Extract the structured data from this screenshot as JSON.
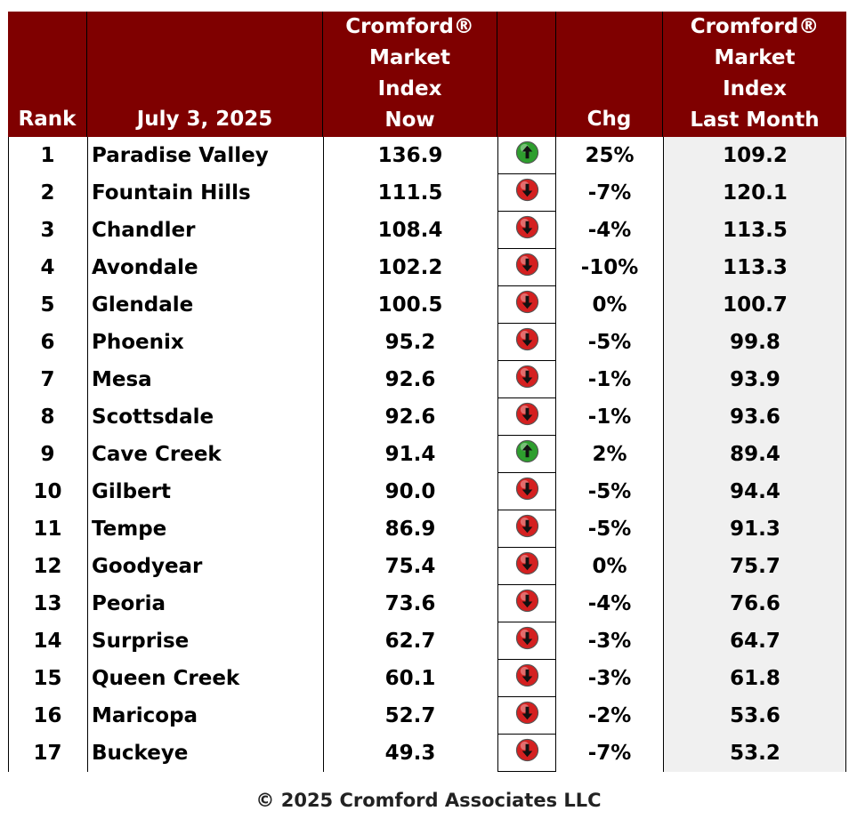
{
  "header": {
    "rank": "Rank",
    "date": "July 3, 2025",
    "now": [
      "Cromford®",
      "Market",
      "Index",
      "Now"
    ],
    "chg": "Chg",
    "last": [
      "Cromford®",
      "Market",
      "Index",
      "Last Month"
    ]
  },
  "colors": {
    "header_bg": "#7f0000",
    "up": "#2e9e2e",
    "down": "#d42020"
  },
  "chart_data": {
    "type": "table",
    "columns": [
      "Rank",
      "July 3, 2025",
      "Cromford® Market Index Now",
      "",
      "Chg",
      "Cromford® Market Index Last Month"
    ],
    "rows": [
      {
        "rank": "1",
        "city": "Paradise Valley",
        "now": "136.9",
        "dir": "up",
        "chg": "25%",
        "last": "109.2"
      },
      {
        "rank": "2",
        "city": "Fountain Hills",
        "now": "111.5",
        "dir": "down",
        "chg": "-7%",
        "last": "120.1"
      },
      {
        "rank": "3",
        "city": "Chandler",
        "now": "108.4",
        "dir": "down",
        "chg": "-4%",
        "last": "113.5"
      },
      {
        "rank": "4",
        "city": "Avondale",
        "now": "102.2",
        "dir": "down",
        "chg": "-10%",
        "last": "113.3"
      },
      {
        "rank": "5",
        "city": "Glendale",
        "now": "100.5",
        "dir": "down",
        "chg": "0%",
        "last": "100.7"
      },
      {
        "rank": "6",
        "city": "Phoenix",
        "now": "95.2",
        "dir": "down",
        "chg": "-5%",
        "last": "99.8"
      },
      {
        "rank": "7",
        "city": "Mesa",
        "now": "92.6",
        "dir": "down",
        "chg": "-1%",
        "last": "93.9"
      },
      {
        "rank": "8",
        "city": "Scottsdale",
        "now": "92.6",
        "dir": "down",
        "chg": "-1%",
        "last": "93.6"
      },
      {
        "rank": "9",
        "city": "Cave Creek",
        "now": "91.4",
        "dir": "up",
        "chg": "2%",
        "last": "89.4"
      },
      {
        "rank": "10",
        "city": "Gilbert",
        "now": "90.0",
        "dir": "down",
        "chg": "-5%",
        "last": "94.4"
      },
      {
        "rank": "11",
        "city": "Tempe",
        "now": "86.9",
        "dir": "down",
        "chg": "-5%",
        "last": "91.3"
      },
      {
        "rank": "12",
        "city": "Goodyear",
        "now": "75.4",
        "dir": "down",
        "chg": "0%",
        "last": "75.7"
      },
      {
        "rank": "13",
        "city": "Peoria",
        "now": "73.6",
        "dir": "down",
        "chg": "-4%",
        "last": "76.6"
      },
      {
        "rank": "14",
        "city": "Surprise",
        "now": "62.7",
        "dir": "down",
        "chg": "-3%",
        "last": "64.7"
      },
      {
        "rank": "15",
        "city": "Queen Creek",
        "now": "60.1",
        "dir": "down",
        "chg": "-3%",
        "last": "61.8"
      },
      {
        "rank": "16",
        "city": "Maricopa",
        "now": "52.7",
        "dir": "down",
        "chg": "-2%",
        "last": "53.6"
      },
      {
        "rank": "17",
        "city": "Buckeye",
        "now": "49.3",
        "dir": "down",
        "chg": "-7%",
        "last": "53.2"
      }
    ]
  },
  "footer": "© 2025 Cromford Associates LLC"
}
